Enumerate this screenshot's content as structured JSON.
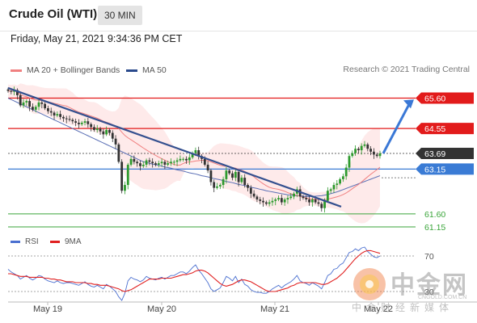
{
  "header": {
    "title": "Crude Oil (WTI)",
    "interval": "30 MIN"
  },
  "datetime": "Friday, May 21, 2021 9:34:36 PM CET",
  "legend": {
    "ma20": "MA 20 + Bollinger Bands",
    "ma20_color": "#f08080",
    "ma50": "MA 50",
    "ma50_color": "#2a4a8c",
    "credit": "Research © 2021 Trading Central"
  },
  "rsi_legend": {
    "rsi": "RSI",
    "rsi_color": "#4a6fd0",
    "ma9": "9MA",
    "ma9_color": "#e02020"
  },
  "watermark": {
    "cn": "中金网",
    "url": "CNGOLD.COM.CN",
    "sub": "中金财经新媒体"
  },
  "chart_data": {
    "type": "candlestick",
    "x_ticks": [
      "May 19",
      "May 20",
      "May 21",
      "May 22"
    ],
    "price_range": [
      60.9,
      66.2
    ],
    "levels": [
      {
        "label": "65.60",
        "value": 65.6,
        "color": "#e21b1b",
        "kind": "resistance"
      },
      {
        "label": "64.55",
        "value": 64.55,
        "color": "#e21b1b",
        "kind": "resistance"
      },
      {
        "label": "63.69",
        "value": 63.69,
        "color": "#333333",
        "kind": "current"
      },
      {
        "label": "63.15",
        "value": 63.15,
        "color": "#3a7bd5",
        "kind": "pivot"
      },
      {
        "label": "61.60",
        "value": 61.6,
        "color": "#3aa53a",
        "kind": "support"
      },
      {
        "label": "61.15",
        "value": 61.15,
        "color": "#3aa53a",
        "kind": "support"
      }
    ],
    "close": [
      65.85,
      65.82,
      65.88,
      65.7,
      65.35,
      65.45,
      65.5,
      65.3,
      65.2,
      65.3,
      65.45,
      65.4,
      65.25,
      65.15,
      65.1,
      65.0,
      65.05,
      64.95,
      64.9,
      64.88,
      64.85,
      64.8,
      64.75,
      64.7,
      64.75,
      64.8,
      64.7,
      64.6,
      64.5,
      64.55,
      64.45,
      64.35,
      64.5,
      64.4,
      64.2,
      64.0,
      63.4,
      62.4,
      62.6,
      63.3,
      63.5,
      63.4,
      63.35,
      63.25,
      63.3,
      63.45,
      63.4,
      63.35,
      63.3,
      63.35,
      63.4,
      63.3,
      63.35,
      63.4,
      63.4,
      63.45,
      63.5,
      63.5,
      63.45,
      63.55,
      63.7,
      63.8,
      63.6,
      63.5,
      63.3,
      63.1,
      62.7,
      62.5,
      62.55,
      62.6,
      62.8,
      63.1,
      63.0,
      62.85,
      63.05,
      62.7,
      62.85,
      62.6,
      62.5,
      62.3,
      62.2,
      62.1,
      62.05,
      62.0,
      61.95,
      62.0,
      62.05,
      62.1,
      62.15,
      62.0,
      62.1,
      62.15,
      62.2,
      62.3,
      62.45,
      62.2,
      62.15,
      62.1,
      62.0,
      62.1,
      62.0,
      61.95,
      61.8,
      62.05,
      62.4,
      62.45,
      62.6,
      62.65,
      62.8,
      62.9,
      63.2,
      63.6,
      63.7,
      63.85,
      63.8,
      63.95,
      64.0,
      63.85,
      63.75,
      63.65,
      63.6,
      63.69
    ],
    "ma50": [
      65.6,
      65.55,
      65.5,
      65.45,
      65.4,
      65.35,
      65.3,
      65.25,
      65.2,
      65.15,
      65.1,
      65.05,
      65.0,
      64.95,
      64.9,
      64.85,
      64.8,
      64.75,
      64.7,
      64.65,
      64.6,
      64.55,
      64.5,
      64.45,
      64.4,
      64.35,
      64.3,
      64.25,
      64.2,
      64.15,
      64.1,
      64.05,
      64.0,
      63.95,
      63.9,
      63.85,
      63.8,
      63.75,
      63.7,
      63.65,
      63.6,
      63.55,
      63.5,
      63.45,
      63.4,
      63.38,
      63.35,
      63.32,
      63.3,
      63.28,
      63.25,
      63.22,
      63.2,
      63.18,
      63.15,
      63.12,
      63.1,
      63.08,
      63.05,
      63.02,
      63.0,
      62.98,
      62.95,
      62.92,
      62.9,
      62.88,
      62.85,
      62.82,
      62.8,
      62.78,
      62.75,
      62.72,
      62.7,
      62.68,
      62.65,
      62.62,
      62.6,
      62.58,
      62.55,
      62.52,
      62.5,
      62.48,
      62.45,
      62.43,
      62.4,
      62.38,
      62.36,
      62.34,
      62.32,
      62.3,
      62.28,
      62.26,
      62.25,
      62.24,
      62.23,
      62.22,
      62.21,
      62.2,
      62.2,
      62.2,
      62.21,
      62.22,
      62.23,
      62.25,
      62.27,
      62.3,
      62.33,
      62.36,
      62.4,
      62.44,
      62.48,
      62.52,
      62.56,
      62.6,
      62.64,
      62.68,
      62.72,
      62.76,
      62.8,
      62.84,
      62.88,
      62.92
    ],
    "rsi_range": [
      20,
      80
    ],
    "rsi_levels": [
      {
        "label": "70",
        "value": 70
      },
      {
        "label": "30",
        "value": 30
      }
    ],
    "rsi": [
      55,
      52,
      50,
      48,
      44,
      46,
      48,
      45,
      43,
      45,
      48,
      47,
      44,
      42,
      41,
      40,
      42,
      40,
      39,
      40,
      40,
      39,
      38,
      37,
      39,
      41,
      38,
      36,
      35,
      37,
      35,
      33,
      38,
      36,
      33,
      30,
      24,
      20,
      28,
      42,
      46,
      44,
      43,
      41,
      43,
      47,
      45,
      44,
      43,
      45,
      46,
      44,
      46,
      48,
      48,
      50,
      52,
      52,
      50,
      53,
      57,
      60,
      54,
      50,
      45,
      40,
      33,
      30,
      32,
      34,
      40,
      47,
      45,
      42,
      47,
      40,
      44,
      38,
      36,
      32,
      30,
      29,
      29,
      28,
      28,
      30,
      33,
      35,
      37,
      34,
      37,
      39,
      41,
      44,
      48,
      42,
      40,
      39,
      37,
      40,
      38,
      36,
      33,
      40,
      48,
      50,
      55,
      56,
      60,
      62,
      68,
      74,
      75,
      78,
      76,
      79,
      80,
      75,
      72,
      69,
      68,
      70
    ],
    "rsi_ma9": [
      50,
      50,
      49,
      48,
      47,
      47,
      47,
      46,
      46,
      46,
      46,
      46,
      45,
      45,
      44,
      44,
      43,
      43,
      42,
      41,
      41,
      41,
      40,
      40,
      40,
      40,
      39,
      39,
      38,
      38,
      37,
      37,
      37,
      36,
      35,
      34,
      33,
      31,
      30,
      31,
      32,
      34,
      36,
      38,
      40,
      42,
      44,
      44,
      44,
      44,
      45,
      45,
      45,
      45,
      46,
      47,
      48,
      49,
      49,
      50,
      51,
      53,
      54,
      54,
      53,
      51,
      48,
      45,
      42,
      39,
      37,
      36,
      37,
      38,
      40,
      42,
      43,
      43,
      42,
      41,
      39,
      37,
      35,
      33,
      31,
      30,
      30,
      30,
      31,
      32,
      33,
      34,
      36,
      37,
      39,
      40,
      40,
      40,
      40,
      40,
      40,
      39,
      38,
      38,
      39,
      41,
      43,
      45,
      48,
      51,
      55,
      59,
      63,
      67,
      70,
      73,
      75,
      76,
      76,
      75,
      74,
      73
    ]
  }
}
